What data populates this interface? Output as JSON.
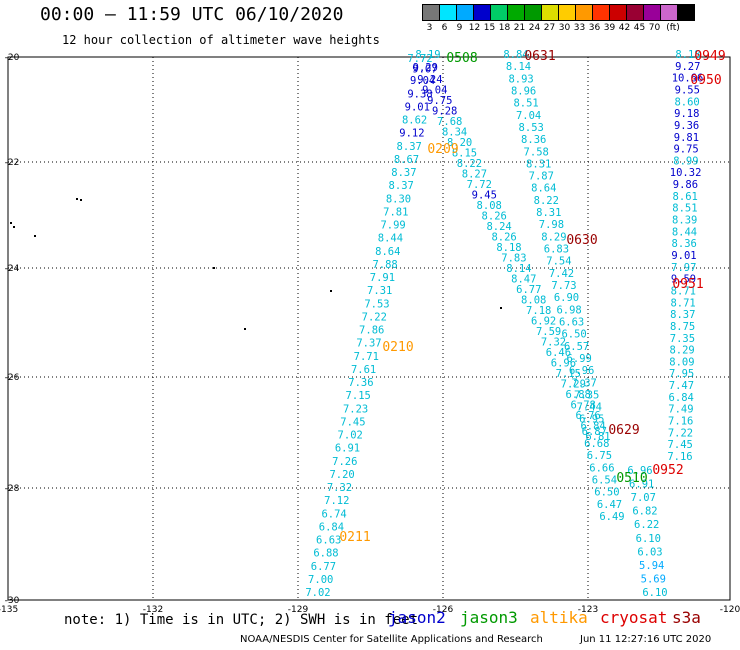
{
  "header": {
    "title": "00:00 – 11:59 UTC 06/10/2020",
    "subtitle": "12 hour collection of altimeter wave heights"
  },
  "legend": {
    "unit": "(ft)",
    "ticks": [
      "3",
      "6",
      "9",
      "12",
      "15",
      "18",
      "21",
      "24",
      "27",
      "30",
      "33",
      "36",
      "39",
      "42",
      "45",
      "70"
    ],
    "colors": [
      "#777777",
      "#00e5ff",
      "#00aaff",
      "#0000cc",
      "#00cc66",
      "#00aa00",
      "#009900",
      "#dddd00",
      "#ffcc00",
      "#ff9900",
      "#ff3300",
      "#cc0000",
      "#990033",
      "#990099",
      "#cc66cc",
      "#000000"
    ]
  },
  "axes": {
    "lon_ticks": [
      "-135",
      "-132",
      "-129",
      "-126",
      "-123",
      "-120"
    ],
    "lat_ticks": [
      "-20",
      "-22",
      "-24",
      "-26",
      "-28",
      "-30"
    ]
  },
  "footer": {
    "note": "note: 1) Time is in UTC; 2) SWH is in feet",
    "satellites": [
      {
        "name": "jason2",
        "color": "#0000cc"
      },
      {
        "name": "jason3",
        "color": "#009900"
      },
      {
        "name": "altika",
        "color": "#ff9900"
      },
      {
        "name": "cryosat",
        "color": "#dd0000"
      },
      {
        "name": "s3a",
        "color": "#990000"
      }
    ],
    "credit": "NOAA/NESDIS Center for Satellite Applications and Research",
    "timestamp": "Jun 11 12:27:16 UTC 2020"
  },
  "passes": [
    {
      "time": "0210",
      "color": "#ff9900",
      "values": [
        "7.02",
        "7.00",
        "6.77",
        "6.88",
        "6.63",
        "6.84",
        "6.74",
        "7.12",
        "7.32",
        "7.20",
        "7.26",
        "6.91",
        "7.02",
        "7.45",
        "7.23",
        "7.15",
        "7.36",
        "7.61",
        "7.71",
        "7.37",
        "7.86",
        "7.22",
        "7.53",
        "7.31",
        "7.91",
        "7.88",
        "8.64",
        "8.44",
        "7.99",
        "7.81",
        "8.30",
        "8.37",
        "8.37",
        "8.67",
        "8.37",
        "9.12",
        "8.62",
        "9.01",
        "9.38",
        "9.04",
        "9.29",
        "8.19"
      ]
    },
    {
      "time": "0211",
      "color": "#ff9900",
      "values": []
    },
    {
      "time": "0209",
      "color": "#ff9900",
      "values": [
        "7.72",
        "9.07",
        "9.24",
        "9.04",
        "9.75",
        "9.28",
        "7.68",
        "8.34",
        "8.20",
        "8.15",
        "8.22",
        "8.27",
        "7.72",
        "9.45",
        "8.08",
        "8.26",
        "8.24",
        "8.26",
        "8.18",
        "7.83",
        "8.14",
        "8.47",
        "6.77",
        "8.08",
        "7.18",
        "6.92",
        "7.59",
        "7.32",
        "6.46",
        "6.96",
        "7.15",
        "7.29",
        "6.88",
        "6.78",
        "6.76",
        "6.84",
        "6.81"
      ]
    },
    {
      "time": "0508",
      "color": "#009900",
      "values": [
        "8.84",
        "8.14",
        "8.93",
        "8.96",
        "8.51",
        "7.04",
        "8.53",
        "8.36",
        "7.58",
        "8.31",
        "7.87",
        "8.64",
        "8.22",
        "8.31",
        "7.98",
        "8.29",
        "6.83",
        "7.54",
        "7.42",
        "7.73",
        "6.90",
        "6.98",
        "6.63",
        "6.50",
        "6.57",
        "6.99",
        "6.96",
        "7.37",
        "7.35",
        "7.44",
        "6.95",
        "6.87",
        "6.68",
        "6.75",
        "6.66",
        "6.54",
        "6.50",
        "6.47",
        "6.49"
      ]
    },
    {
      "time": "0631",
      "color": "#990000",
      "values": []
    },
    {
      "time": "0630",
      "color": "#990000",
      "values": []
    },
    {
      "time": "0629",
      "color": "#990000",
      "values": []
    },
    {
      "time": "0510",
      "color": "#009900",
      "values": [
        "6.96",
        "6.91",
        "7.07",
        "6.82",
        "6.22",
        "6.10",
        "6.03",
        "5.94",
        "5.69",
        "6.10"
      ]
    },
    {
      "time": "0949",
      "color": "#dd0000",
      "values": [
        "8.18",
        "9.27",
        "10.66",
        "9.55",
        "8.60",
        "9.18",
        "9.36",
        "9.81",
        "9.75",
        "8.99",
        "10.32",
        "9.86",
        "8.61",
        "8.51",
        "8.39",
        "8.44",
        "8.36",
        "9.01",
        "7.97",
        "9.59",
        "8.71",
        "8.71",
        "8.37",
        "8.75",
        "7.35",
        "8.29",
        "8.09",
        "7.95",
        "7.47",
        "6.84",
        "7.49",
        "7.16",
        "7.22",
        "7.45",
        "7.16"
      ]
    },
    {
      "time": "0950",
      "color": "#dd0000",
      "values": []
    },
    {
      "time": "0951",
      "color": "#dd0000",
      "values": []
    },
    {
      "time": "0952",
      "color": "#dd0000",
      "values": []
    }
  ]
}
